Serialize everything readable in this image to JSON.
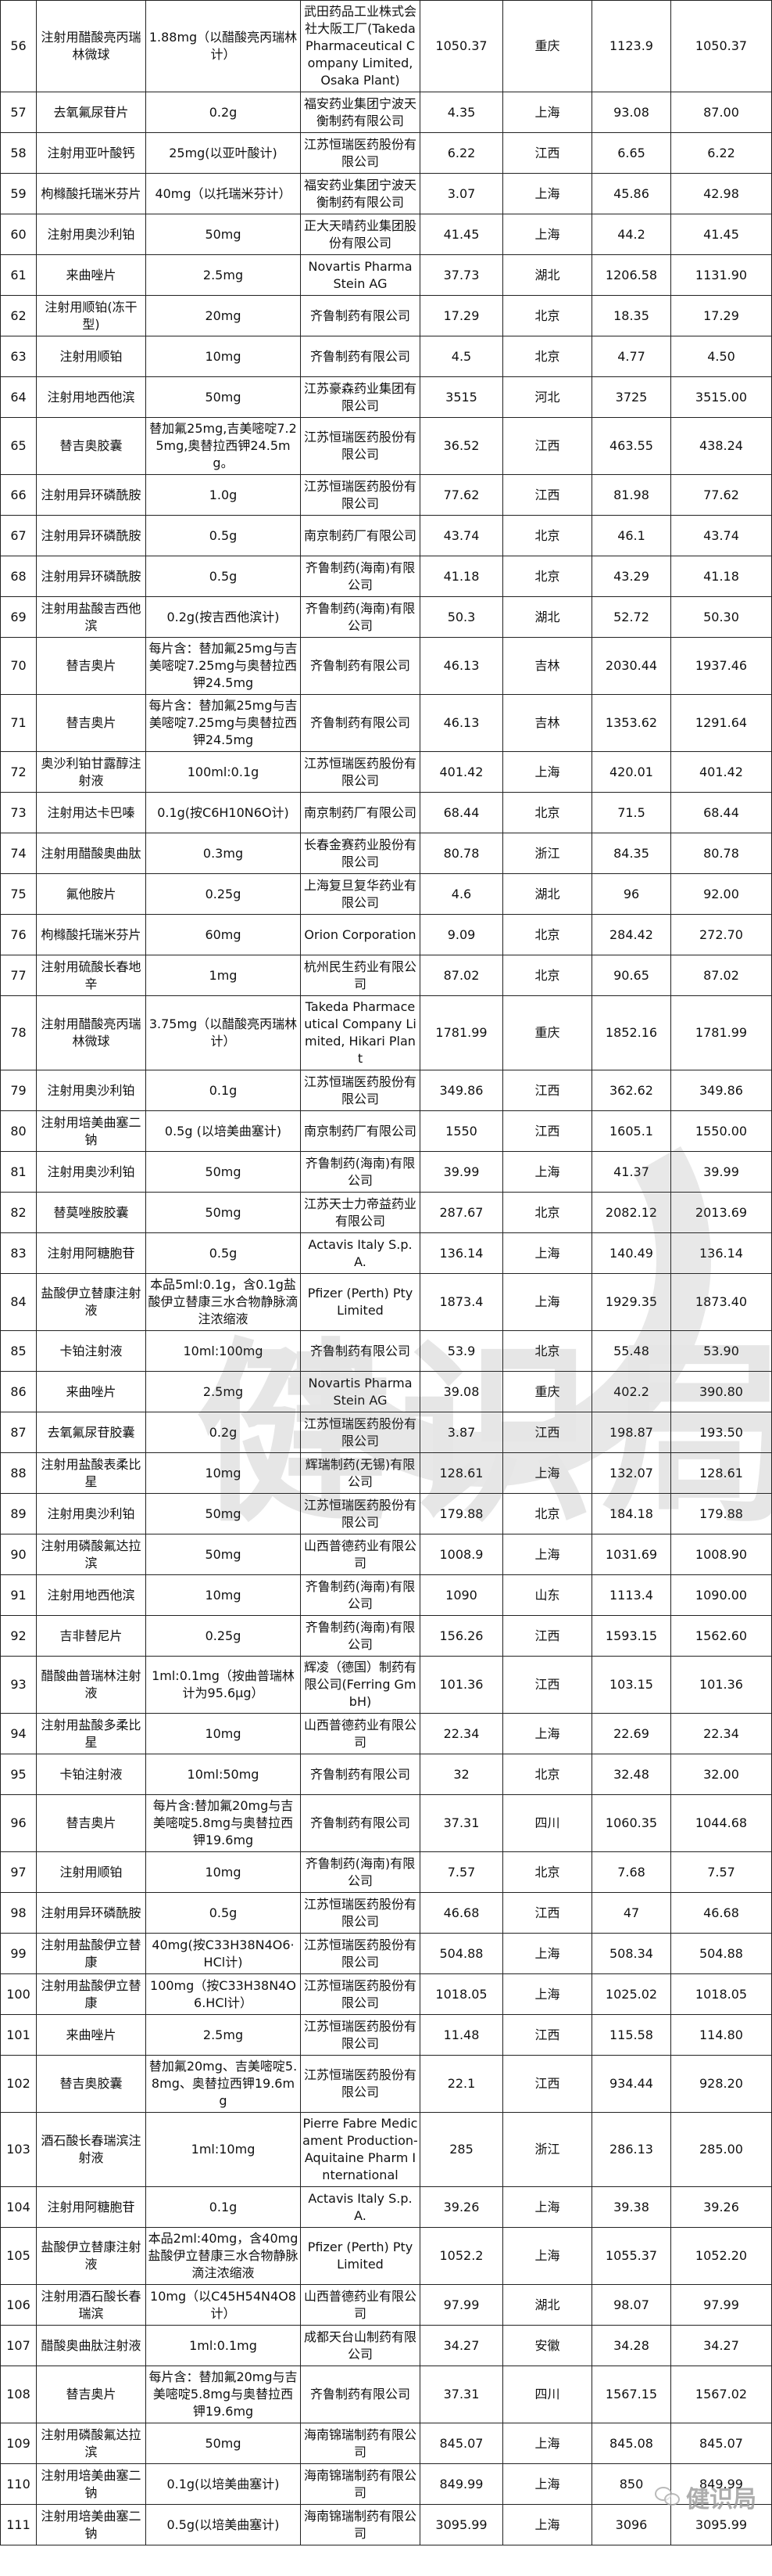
{
  "table": {
    "rows": [
      [
        "56",
        "注射用醋酸亮丙瑞林微球",
        "1.88mg（以醋酸亮丙瑞林计）",
        "武田药品工业株式会社大阪工厂(Takeda Pharmaceutical Company Limited, Osaka Plant)",
        "1050.37",
        "重庆",
        "1123.9",
        "1050.37"
      ],
      [
        "57",
        "去氧氟尿苷片",
        "0.2g",
        "福安药业集团宁波天衡制药有限公司",
        "4.35",
        "上海",
        "93.08",
        "87.00"
      ],
      [
        "58",
        "注射用亚叶酸钙",
        "25mg(以亚叶酸计)",
        "江苏恒瑞医药股份有限公司",
        "6.22",
        "江西",
        "6.65",
        "6.22"
      ],
      [
        "59",
        "枸橼酸托瑞米芬片",
        "40mg（以托瑞米芬计）",
        "福安药业集团宁波天衡制药有限公司",
        "3.07",
        "上海",
        "45.86",
        "42.98"
      ],
      [
        "60",
        "注射用奥沙利铂",
        "50mg",
        "正大天晴药业集团股份有限公司",
        "41.45",
        "上海",
        "44.2",
        "41.45"
      ],
      [
        "61",
        "来曲唑片",
        "2.5mg",
        "Novartis Pharma Stein AG",
        "37.73",
        "湖北",
        "1206.58",
        "1131.90"
      ],
      [
        "62",
        "注射用顺铂(冻干型)",
        "20mg",
        "齐鲁制药有限公司",
        "17.29",
        "北京",
        "18.35",
        "17.29"
      ],
      [
        "63",
        "注射用顺铂",
        "10mg",
        "齐鲁制药有限公司",
        "4.5",
        "北京",
        "4.77",
        "4.50"
      ],
      [
        "64",
        "注射用地西他滨",
        "50mg",
        "江苏豪森药业集团有限公司",
        "3515",
        "河北",
        "3725",
        "3515.00"
      ],
      [
        "65",
        "替吉奥胶囊",
        "替加氟25mg,吉美嘧啶7.25mg,奥替拉西钾24.5mg。",
        "江苏恒瑞医药股份有限公司",
        "36.52",
        "江西",
        "463.55",
        "438.24"
      ],
      [
        "66",
        "注射用异环磷酰胺",
        "1.0g",
        "江苏恒瑞医药股份有限公司",
        "77.62",
        "江西",
        "81.98",
        "77.62"
      ],
      [
        "67",
        "注射用异环磷酰胺",
        "0.5g",
        "南京制药厂有限公司",
        "43.74",
        "北京",
        "46.1",
        "43.74"
      ],
      [
        "68",
        "注射用异环磷酰胺",
        "0.5g",
        "齐鲁制药(海南)有限公司",
        "41.18",
        "北京",
        "43.29",
        "41.18"
      ],
      [
        "69",
        "注射用盐酸吉西他滨",
        "0.2g(按吉西他滨计)",
        "齐鲁制药(海南)有限公司",
        "50.3",
        "湖北",
        "52.72",
        "50.30"
      ],
      [
        "70",
        "替吉奥片",
        "每片含：替加氟25mg与吉美嘧啶7.25mg与奥替拉西钾24.5mg",
        "齐鲁制药有限公司",
        "46.13",
        "吉林",
        "2030.44",
        "1937.46"
      ],
      [
        "71",
        "替吉奥片",
        "每片含：替加氟25mg与吉美嘧啶7.25mg与奥替拉西钾24.5mg",
        "齐鲁制药有限公司",
        "46.13",
        "吉林",
        "1353.62",
        "1291.64"
      ],
      [
        "72",
        "奥沙利铂甘露醇注射液",
        "100ml:0.1g",
        "江苏恒瑞医药股份有限公司",
        "401.42",
        "上海",
        "420.01",
        "401.42"
      ],
      [
        "73",
        "注射用达卡巴嗪",
        "0.1g(按C6H10N6O计)",
        "南京制药厂有限公司",
        "68.44",
        "北京",
        "71.5",
        "68.44"
      ],
      [
        "74",
        "注射用醋酸奥曲肽",
        "0.3mg",
        "长春金赛药业股份有限公司",
        "80.78",
        "浙江",
        "84.35",
        "80.78"
      ],
      [
        "75",
        "氟他胺片",
        "0.25g",
        "上海复旦复华药业有限公司",
        "4.6",
        "湖北",
        "96",
        "92.00"
      ],
      [
        "76",
        "枸橼酸托瑞米芬片",
        "60mg",
        "Orion Corporation",
        "9.09",
        "北京",
        "284.42",
        "272.70"
      ],
      [
        "77",
        "注射用硫酸长春地辛",
        "1mg",
        "杭州民生药业有限公司",
        "87.02",
        "北京",
        "90.65",
        "87.02"
      ],
      [
        "78",
        "注射用醋酸亮丙瑞林微球",
        "3.75mg（以醋酸亮丙瑞林计）",
        "Takeda Pharmaceutical Company Limited, Hikari Plant",
        "1781.99",
        "重庆",
        "1852.16",
        "1781.99"
      ],
      [
        "79",
        "注射用奥沙利铂",
        "0.1g",
        "江苏恒瑞医药股份有限公司",
        "349.86",
        "江西",
        "362.62",
        "349.86"
      ],
      [
        "80",
        "注射用培美曲塞二钠",
        "0.5g (以培美曲塞计)",
        "南京制药厂有限公司",
        "1550",
        "江西",
        "1605.1",
        "1550.00"
      ],
      [
        "81",
        "注射用奥沙利铂",
        "50mg",
        "齐鲁制药(海南)有限公司",
        "39.99",
        "上海",
        "41.37",
        "39.99"
      ],
      [
        "82",
        "替莫唑胺胶囊",
        "50mg",
        "江苏天士力帝益药业有限公司",
        "287.67",
        "北京",
        "2082.12",
        "2013.69"
      ],
      [
        "83",
        "注射用阿糖胞苷",
        "0.5g",
        "Actavis Italy S.p.A.",
        "136.14",
        "上海",
        "140.49",
        "136.14"
      ],
      [
        "84",
        "盐酸伊立替康注射液",
        "本品5ml:0.1g，含0.1g盐酸伊立替康三水合物静脉滴注浓缩液",
        "Pfizer (Perth) Pty Limited",
        "1873.4",
        "上海",
        "1929.35",
        "1873.40"
      ],
      [
        "85",
        "卡铂注射液",
        "10ml:100mg",
        "齐鲁制药有限公司",
        "53.9",
        "北京",
        "55.48",
        "53.90"
      ],
      [
        "86",
        "来曲唑片",
        "2.5mg",
        "Novartis Pharma Stein AG",
        "39.08",
        "重庆",
        "402.2",
        "390.80"
      ],
      [
        "87",
        "去氧氟尿苷胶囊",
        "0.2g",
        "江苏恒瑞医药股份有限公司",
        "3.87",
        "江西",
        "198.87",
        "193.50"
      ],
      [
        "88",
        "注射用盐酸表柔比星",
        "10mg",
        "辉瑞制药(无锡)有限公司",
        "128.61",
        "上海",
        "132.07",
        "128.61"
      ],
      [
        "89",
        "注射用奥沙利铂",
        "50mg",
        "江苏恒瑞医药股份有限公司",
        "179.88",
        "北京",
        "184.18",
        "179.88"
      ],
      [
        "90",
        "注射用磷酸氟达拉滨",
        "50mg",
        "山西普德药业有限公司",
        "1008.9",
        "上海",
        "1031.69",
        "1008.90"
      ],
      [
        "91",
        "注射用地西他滨",
        "10mg",
        "齐鲁制药(海南)有限公司",
        "1090",
        "山东",
        "1113.4",
        "1090.00"
      ],
      [
        "92",
        "吉非替尼片",
        "0.25g",
        "齐鲁制药(海南)有限公司",
        "156.26",
        "江西",
        "1593.15",
        "1562.60"
      ],
      [
        "93",
        "醋酸曲普瑞林注射液",
        "1ml:0.1mg（按曲普瑞林计为95.6μg）",
        "辉凌（德国）制药有限公司(Ferring GmbH)",
        "101.36",
        "江西",
        "103.15",
        "101.36"
      ],
      [
        "94",
        "注射用盐酸多柔比星",
        "10mg",
        "山西普德药业有限公司",
        "22.34",
        "上海",
        "22.69",
        "22.34"
      ],
      [
        "95",
        "卡铂注射液",
        "10ml:50mg",
        "齐鲁制药有限公司",
        "32",
        "北京",
        "32.48",
        "32.00"
      ],
      [
        "96",
        "替吉奥片",
        "每片含:替加氟20mg与吉美嘧啶5.8mg与奥替拉西钾19.6mg",
        "齐鲁制药有限公司",
        "37.31",
        "四川",
        "1060.35",
        "1044.68"
      ],
      [
        "97",
        "注射用顺铂",
        "10mg",
        "齐鲁制药(海南)有限公司",
        "7.57",
        "北京",
        "7.68",
        "7.57"
      ],
      [
        "98",
        "注射用异环磷酰胺",
        "0.5g",
        "江苏恒瑞医药股份有限公司",
        "46.68",
        "江西",
        "47",
        "46.68"
      ],
      [
        "99",
        "注射用盐酸伊立替康",
        "40mg(按C33H38N4O6·HCl计)",
        "江苏恒瑞医药股份有限公司",
        "504.88",
        "上海",
        "508.34",
        "504.88"
      ],
      [
        "100",
        "注射用盐酸伊立替康",
        "100mg（按C33H38N4O6.HCl计）",
        "江苏恒瑞医药股份有限公司",
        "1018.05",
        "上海",
        "1025.02",
        "1018.05"
      ],
      [
        "101",
        "来曲唑片",
        "2.5mg",
        "江苏恒瑞医药股份有限公司",
        "11.48",
        "江西",
        "115.58",
        "114.80"
      ],
      [
        "102",
        "替吉奥胶囊",
        "替加氟20mg、吉美嘧啶5.8mg、奥替拉西钾19.6mg",
        "江苏恒瑞医药股份有限公司",
        "22.1",
        "江西",
        "934.44",
        "928.20"
      ],
      [
        "103",
        "酒石酸长春瑞滨注射液",
        "1ml:10mg",
        "Pierre Fabre Medicament Production-Aquitaine Pharm International",
        "285",
        "浙江",
        "286.13",
        "285.00"
      ],
      [
        "104",
        "注射用阿糖胞苷",
        "0.1g",
        "Actavis Italy S.p.A.",
        "39.26",
        "上海",
        "39.38",
        "39.26"
      ],
      [
        "105",
        "盐酸伊立替康注射液",
        "本品2ml:40mg，含40mg盐酸伊立替康三水合物静脉滴注浓缩液",
        "Pfizer (Perth) Pty Limited",
        "1052.2",
        "上海",
        "1055.37",
        "1052.20"
      ],
      [
        "106",
        "注射用酒石酸长春瑞滨",
        "10mg（以C45H54N4O8计）",
        "山西普德药业有限公司",
        "97.99",
        "湖北",
        "98.07",
        "97.99"
      ],
      [
        "107",
        "醋酸奥曲肽注射液",
        "1ml:0.1mg",
        "成都天台山制药有限公司",
        "34.27",
        "安徽",
        "34.28",
        "34.27"
      ],
      [
        "108",
        "替吉奥片",
        "每片含：替加氟20mg与吉美嘧啶5.8mg与奥替拉西钾19.6mg",
        "齐鲁制药有限公司",
        "37.31",
        "四川",
        "1567.15",
        "1567.02"
      ],
      [
        "109",
        "注射用磷酸氟达拉滨",
        "50mg",
        "海南锦瑞制药有限公司",
        "845.07",
        "上海",
        "845.08",
        "845.07"
      ],
      [
        "110",
        "注射用培美曲塞二钠",
        "0.1g(以培美曲塞计)",
        "海南锦瑞制药有限公司",
        "849.99",
        "上海",
        "850",
        "849.99"
      ],
      [
        "111",
        "注射用培美曲塞二钠",
        "0.5g(以培美曲塞计)",
        "海南锦瑞制药有限公司",
        "3095.99",
        "上海",
        "3096",
        "3095.99"
      ]
    ]
  },
  "watermark": {
    "logo_text": "健识局"
  },
  "corner_logo": {
    "text": "健识局",
    "icon": "wechat-icon"
  }
}
